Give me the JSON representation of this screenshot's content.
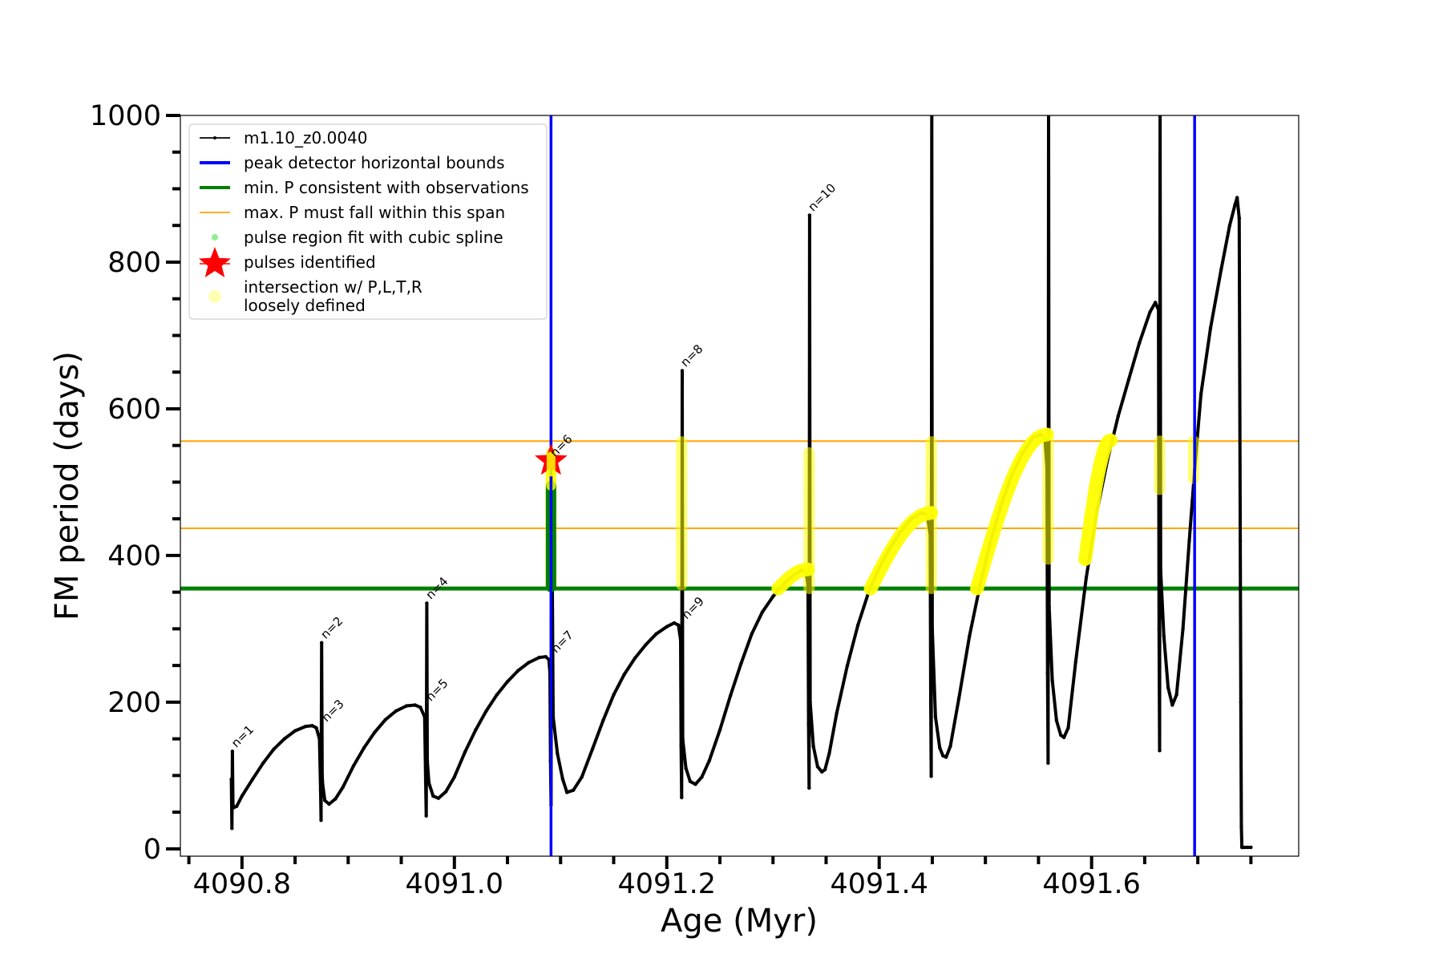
{
  "chart_data": {
    "type": "line",
    "title": "",
    "xlabel": "Age (Myr)",
    "ylabel": "FM period (days)",
    "xlim": [
      4090.742,
      4091.795
    ],
    "ylim": [
      -10,
      1000
    ],
    "grid": false,
    "x_ticks": [
      {
        "value": 4090.8,
        "label": "4090.8"
      },
      {
        "value": 4091.0,
        "label": "4091.0"
      },
      {
        "value": 4091.2,
        "label": "4091.2"
      },
      {
        "value": 4091.4,
        "label": "4091.4"
      },
      {
        "value": 4091.6,
        "label": "4091.6"
      }
    ],
    "x_minor_ticks": [
      4090.75,
      4090.85,
      4090.9,
      4090.95,
      4091.05,
      4091.1,
      4091.15,
      4091.25,
      4091.3,
      4091.35,
      4091.45,
      4091.5,
      4091.55,
      4091.65,
      4091.7,
      4091.75
    ],
    "y_ticks": [
      {
        "value": 0,
        "label": "0"
      },
      {
        "value": 200,
        "label": "200"
      },
      {
        "value": 400,
        "label": "400"
      },
      {
        "value": 600,
        "label": "600"
      },
      {
        "value": 800,
        "label": "800"
      },
      {
        "value": 1000,
        "label": "1000"
      }
    ],
    "y_minor_ticks": [
      50,
      100,
      150,
      250,
      300,
      350,
      450,
      500,
      550,
      650,
      700,
      750,
      850,
      900,
      950
    ],
    "legend_position": "upper-left",
    "legend": [
      {
        "label": "m1.10_z0.0040",
        "marker": "line-dot",
        "color": "#000000"
      },
      {
        "label": "peak detector horizontal bounds",
        "marker": "line-thick",
        "color": "#0000ff"
      },
      {
        "label": "min. P consistent with observations",
        "marker": "line-thick",
        "color": "#008000"
      },
      {
        "label": "max. P must fall within this span",
        "marker": "line-thin",
        "color": "#ffa500"
      },
      {
        "label": "pulse region fit with cubic spline",
        "marker": "dot",
        "color": "#90ee90"
      },
      {
        "label": "pulses identified",
        "marker": "star",
        "color": "#ff0000"
      },
      {
        "label": "intersection w/ P,L,T,R",
        "label2": "loosely defined",
        "marker": "circle",
        "color": "#ffffb3"
      }
    ],
    "vertical_lines": [
      {
        "name": "peak detector horizontal bounds",
        "x": 4091.091,
        "color": "#0000ff"
      },
      {
        "name": "peak detector horizontal bounds",
        "x": 4091.697,
        "color": "#0000ff"
      }
    ],
    "horizontal_lines": [
      {
        "name": "min. P consistent with observations",
        "y": 355,
        "color": "#008000"
      },
      {
        "name": "max. P must fall within this span",
        "y": 437,
        "color": "#ffa500"
      },
      {
        "name": "max. P must fall within this span",
        "y": 556,
        "color": "#ffa500"
      }
    ],
    "series": [
      {
        "name": "m1.10_z0.0040",
        "color": "#000000",
        "x": [
          4090.79,
          4090.7905,
          4090.791,
          4090.7915,
          4090.792,
          4090.795,
          4090.8,
          4090.81,
          4090.82,
          4090.83,
          4090.84,
          4090.85,
          4090.86,
          4090.866,
          4090.87,
          4090.873,
          4090.874,
          4090.8745,
          4090.875,
          4090.8755,
          4090.876,
          4090.878,
          4090.882,
          4090.888,
          4090.895,
          4090.905,
          4090.915,
          4090.925,
          4090.935,
          4090.945,
          4090.955,
          4090.963,
          4090.968,
          4090.972,
          4090.973,
          4090.9735,
          4090.974,
          4090.9745,
          4090.976,
          4090.98,
          4090.985,
          4090.992,
          4091.0,
          4091.01,
          4091.02,
          4091.03,
          4091.04,
          4091.05,
          4091.06,
          4091.07,
          4091.08,
          4091.086,
          4091.089,
          4091.09,
          4091.0905,
          4091.091,
          4091.0915,
          4091.093,
          4091.097,
          4091.102,
          4091.106,
          4091.112,
          4091.12,
          4091.13,
          4091.14,
          4091.15,
          4091.16,
          4091.17,
          4091.18,
          4091.19,
          4091.2,
          4091.207,
          4091.211,
          4091.213,
          4091.2135,
          4091.214,
          4091.2145,
          4091.215,
          4091.218,
          4091.222,
          4091.227,
          4091.233,
          4091.24,
          4091.25,
          4091.26,
          4091.27,
          4091.28,
          4091.29,
          4091.3,
          4091.31,
          4091.32,
          4091.327,
          4091.331,
          4091.333,
          4091.3335,
          4091.334,
          4091.3345,
          4091.335,
          4091.338,
          4091.342,
          4091.346,
          4091.349,
          4091.353,
          4091.36,
          4091.37,
          4091.38,
          4091.39,
          4091.4,
          4091.41,
          4091.42,
          4091.43,
          4091.44,
          4091.445,
          4091.448,
          4091.4485,
          4091.449,
          4091.4495,
          4091.45,
          4091.453,
          4091.457,
          4091.46,
          4091.463,
          4091.467,
          4091.475,
          4091.485,
          4091.495,
          4091.505,
          4091.515,
          4091.525,
          4091.535,
          4091.545,
          4091.552,
          4091.556,
          4091.558,
          4091.5585,
          4091.559,
          4091.5595,
          4091.56,
          4091.563,
          4091.567,
          4091.571,
          4091.574,
          4091.578,
          4091.585,
          4091.595,
          4091.605,
          4091.615,
          4091.625,
          4091.635,
          4091.645,
          4091.655,
          4091.66,
          4091.663,
          4091.6635,
          4091.664,
          4091.6645,
          4091.665,
          4091.668,
          4091.672,
          4091.676,
          4091.68,
          4091.686,
          4091.692,
          4091.697,
          4091.703,
          4091.712,
          4091.722,
          4091.73,
          4091.735,
          4091.737,
          4091.739,
          4091.74,
          4091.7405,
          4091.741,
          4091.7415,
          4091.742,
          4091.744,
          4091.747,
          4091.75
        ],
        "y": [
          95,
          28,
          133,
          60,
          56,
          58,
          72,
          95,
          117,
          136,
          150,
          161,
          167,
          168,
          165,
          150,
          80,
          39,
          281,
          100,
          88,
          66,
          61,
          68,
          84,
          113,
          138,
          159,
          176,
          188,
          195,
          196,
          193,
          180,
          90,
          45,
          335,
          120,
          90,
          72,
          69,
          78,
          98,
          132,
          162,
          188,
          210,
          228,
          243,
          254,
          261,
          262,
          258,
          240,
          120,
          60,
          529,
          180,
          130,
          95,
          77,
          80,
          98,
          136,
          175,
          210,
          238,
          260,
          278,
          293,
          303,
          308,
          305,
          285,
          140,
          70,
          652,
          150,
          110,
          92,
          88,
          98,
          120,
          162,
          209,
          253,
          293,
          323,
          344,
          361,
          374,
          380,
          378,
          360,
          170,
          83,
          864,
          200,
          140,
          112,
          105,
          108,
          130,
          185,
          250,
          305,
          350,
          383,
          410,
          432,
          450,
          458,
          456,
          430,
          200,
          99,
          1000,
          300,
          180,
          138,
          127,
          125,
          140,
          205,
          290,
          360,
          420,
          470,
          510,
          540,
          561,
          565,
          560,
          520,
          240,
          117,
          1000,
          330,
          230,
          175,
          155,
          152,
          165,
          255,
          370,
          460,
          530,
          590,
          640,
          690,
          732,
          745,
          735,
          300,
          134,
          1000,
          380,
          290,
          220,
          196,
          210,
          300,
          420,
          517,
          620,
          710,
          790,
          850,
          878,
          888,
          860,
          420,
          200,
          30,
          2,
          2,
          2,
          2,
          2
        ]
      }
    ],
    "spline_fit_points": {
      "x": 4091.091,
      "y_range": [
        357,
        495
      ],
      "color": "#008000"
    },
    "pulses_identified": [
      {
        "x": 4091.091,
        "y": 529,
        "color": "#ff0000"
      }
    ],
    "intersection_regions": [
      {
        "x": 4091.091,
        "y_range": [
          360,
          535
        ]
      },
      {
        "x": 4091.214,
        "y_range": [
          360,
          555
        ]
      },
      {
        "x": 4091.305,
        "x_end": 4091.333,
        "y_range": [
          355,
          381
        ]
      },
      {
        "x": 4091.334,
        "y_range": [
          355,
          540
        ]
      },
      {
        "x": 4091.392,
        "x_end": 4091.449,
        "y_range": [
          355,
          458
        ]
      },
      {
        "x": 4091.449,
        "y_range": [
          355,
          555
        ]
      },
      {
        "x": 4091.492,
        "x_end": 4091.558,
        "y_range": [
          355,
          565
        ]
      },
      {
        "x": 4091.559,
        "y_range": [
          395,
          560
        ]
      },
      {
        "x": 4091.594,
        "x_end": 4091.618,
        "y_range": [
          395,
          557
        ]
      },
      {
        "x": 4091.664,
        "y_range": [
          490,
          556
        ]
      },
      {
        "x": 4091.696,
        "y_range": [
          505,
          556
        ]
      }
    ],
    "annotations": [
      {
        "text": "n=1",
        "x": 4090.791,
        "y": 133
      },
      {
        "text": "n=2",
        "x": 4090.875,
        "y": 281
      },
      {
        "text": "n=3",
        "x": 4090.876,
        "y": 168
      },
      {
        "text": "n=4",
        "x": 4090.974,
        "y": 335
      },
      {
        "text": "n=5",
        "x": 4090.974,
        "y": 196
      },
      {
        "text": "n=6",
        "x": 4091.091,
        "y": 529
      },
      {
        "text": "n=7",
        "x": 4091.092,
        "y": 262
      },
      {
        "text": "n=8",
        "x": 4091.214,
        "y": 652
      },
      {
        "text": "n=9",
        "x": 4091.215,
        "y": 308
      },
      {
        "text": "n=10",
        "x": 4091.334,
        "y": 864
      }
    ]
  }
}
